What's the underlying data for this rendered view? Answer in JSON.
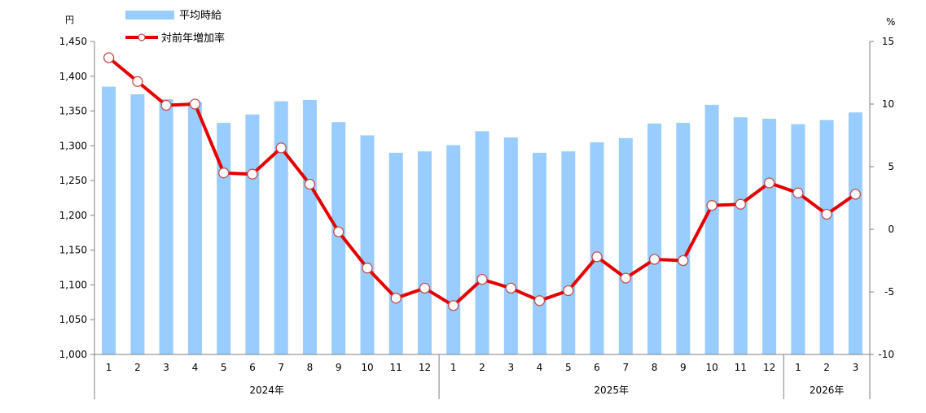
{
  "chart_data": {
    "type": "bar+line",
    "left_axis": {
      "unit_label": "円",
      "ylim": [
        1000,
        1450
      ],
      "ticks": [
        "1,000",
        "1,050",
        "1,100",
        "1,150",
        "1,200",
        "1,250",
        "1,300",
        "1,350",
        "1,400",
        "1,450"
      ]
    },
    "right_axis": {
      "unit_label": "%",
      "ylim": [
        -10,
        15
      ],
      "ticks": [
        "-10",
        "-5",
        "0",
        "5",
        "10",
        "15"
      ]
    },
    "categories": [
      "1",
      "2",
      "3",
      "4",
      "5",
      "6",
      "7",
      "8",
      "9",
      "10",
      "11",
      "12",
      "1",
      "2",
      "3",
      "4",
      "5",
      "6",
      "7",
      "8",
      "9",
      "10",
      "11",
      "12",
      "1",
      "2",
      "3"
    ],
    "year_groups": [
      {
        "label": "2024年",
        "count": 12
      },
      {
        "label": "2025年",
        "count": 12
      },
      {
        "label": "2026年",
        "count": 3
      }
    ],
    "series": [
      {
        "name": "平均時給",
        "type": "bar",
        "axis": "left",
        "color": "#99CCFF",
        "values": [
          1385,
          1374,
          1367,
          1363,
          1333,
          1345,
          1364,
          1366,
          1334,
          1315,
          1290,
          1292,
          1301,
          1321,
          1312,
          1290,
          1292,
          1305,
          1311,
          1332,
          1333,
          1359,
          1341,
          1339,
          1331,
          1337,
          1348
        ]
      },
      {
        "name": "対前年増加率",
        "type": "line",
        "axis": "right",
        "color": "#E50000",
        "marker_color": "#ffffff",
        "marker_edge": "#C0504D",
        "values": [
          13.7,
          11.8,
          9.9,
          10.0,
          4.5,
          4.4,
          6.5,
          3.6,
          -0.2,
          -3.1,
          -5.5,
          -4.7,
          -6.1,
          -4.0,
          -4.7,
          -5.7,
          -4.9,
          -2.2,
          -3.9,
          -2.4,
          -2.5,
          1.9,
          2.0,
          3.7,
          2.9,
          1.2,
          2.8
        ]
      }
    ],
    "grid": false,
    "legend_position": "top-left"
  }
}
